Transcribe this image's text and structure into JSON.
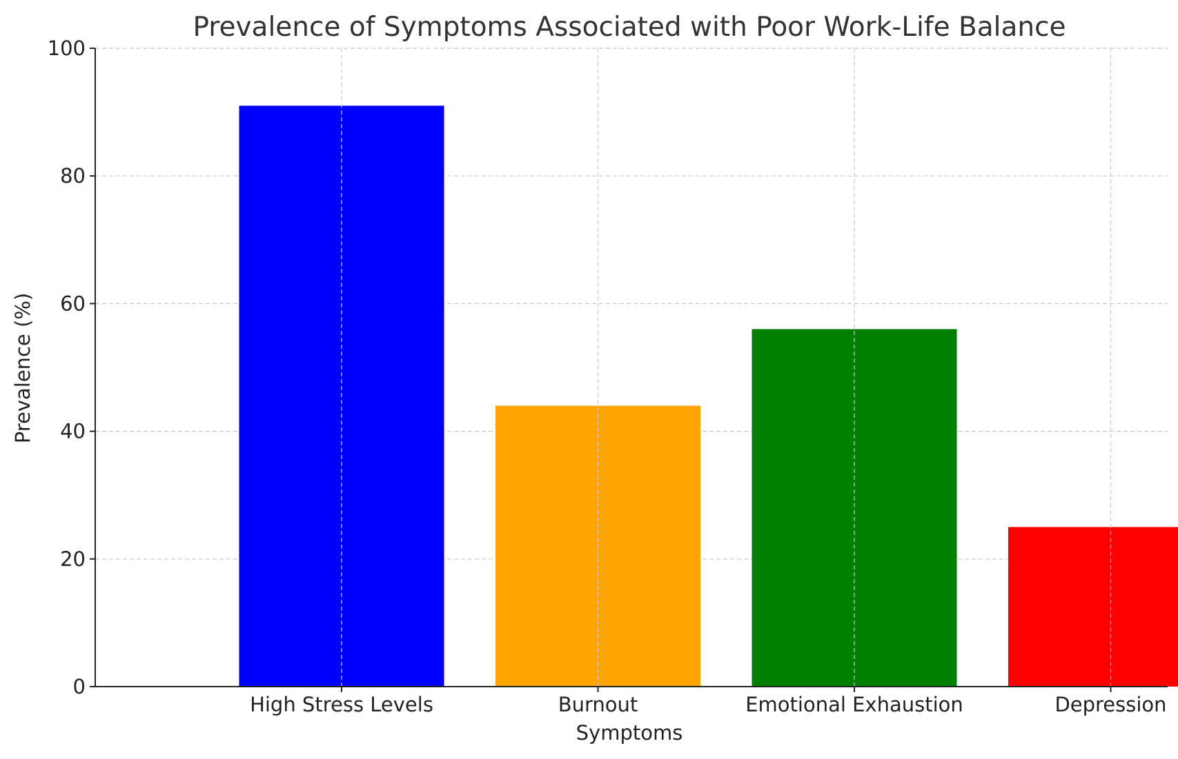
{
  "chart_data": {
    "type": "bar",
    "title": "Prevalence of Symptoms Associated with Poor Work-Life Balance",
    "xlabel": "Symptoms",
    "ylabel": "Prevalence (%)",
    "categories": [
      "High Stress Levels",
      "Burnout",
      "Emotional Exhaustion",
      "Depression"
    ],
    "values": [
      91,
      44,
      56,
      25
    ],
    "colors": [
      "#0000ff",
      "#ffa500",
      "#008000",
      "#ff0000"
    ],
    "ylim": [
      0,
      100
    ],
    "yticks": [
      0,
      20,
      40,
      60,
      80,
      100
    ],
    "grid": true,
    "legend": "none"
  }
}
